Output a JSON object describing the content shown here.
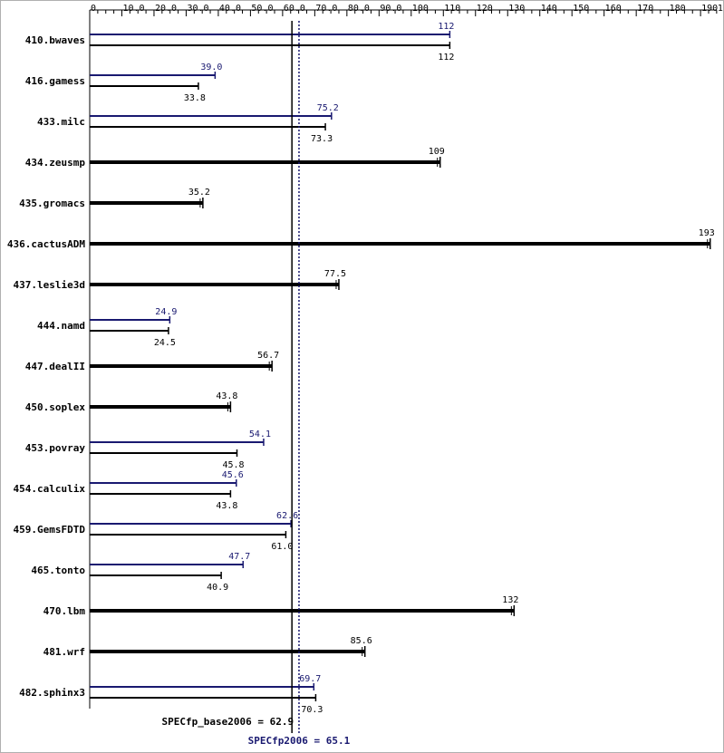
{
  "chart_data": {
    "type": "bar",
    "orientation": "horizontal",
    "title": "",
    "xlabel": "",
    "ylabel": "",
    "xlim": [
      0,
      195
    ],
    "x_ticks": [
      "0",
      "10.0",
      "20.0",
      "30.0",
      "40.0",
      "50.0",
      "60.0",
      "70.0",
      "80.0",
      "90.0",
      "100",
      "110",
      "120",
      "130",
      "140",
      "150",
      "160",
      "170",
      "180",
      "190",
      "195"
    ],
    "x_tick_values": [
      0,
      10,
      20,
      30,
      40,
      50,
      60,
      70,
      80,
      90,
      100,
      110,
      120,
      130,
      140,
      150,
      160,
      170,
      180,
      190,
      195
    ],
    "grid": false,
    "categories": [
      "410.bwaves",
      "416.gamess",
      "433.milc",
      "434.zeusmp",
      "435.gromacs",
      "436.cactusADM",
      "437.leslie3d",
      "444.namd",
      "447.dealII",
      "450.soplex",
      "453.povray",
      "454.calculix",
      "459.GemsFDTD",
      "465.tonto",
      "470.lbm",
      "481.wrf",
      "482.sphinx3"
    ],
    "series": [
      {
        "color": "#191970",
        "values": [
          112,
          39.0,
          75.2,
          null,
          null,
          null,
          null,
          24.9,
          null,
          null,
          54.1,
          45.6,
          62.6,
          47.7,
          null,
          null,
          69.7
        ],
        "labels": [
          "112",
          "39.0",
          "75.2",
          "",
          "",
          "",
          "",
          "24.9",
          "",
          "",
          "54.1",
          "45.6",
          "62.6",
          "47.7",
          "",
          "",
          "69.7"
        ]
      },
      {
        "color": "#000000",
        "values": [
          112,
          33.8,
          73.3,
          109,
          35.2,
          193,
          77.5,
          24.5,
          56.7,
          43.8,
          45.8,
          43.8,
          61.0,
          40.9,
          132,
          85.6,
          70.3
        ],
        "labels": [
          "112",
          "33.8",
          "73.3",
          "109",
          "35.2",
          "193",
          "77.5",
          "24.5",
          "56.7",
          "43.8",
          "45.8",
          "43.8",
          "61.0",
          "40.9",
          "132",
          "85.6",
          "70.3"
        ]
      }
    ],
    "reference_lines": [
      {
        "label": "SPECfp_base2006 = 62.9",
        "value": 62.9,
        "color": "#000000",
        "style": "solid"
      },
      {
        "label": "SPECfp2006 = 65.1",
        "value": 65.1,
        "color": "#191970",
        "style": "dotted"
      }
    ]
  }
}
